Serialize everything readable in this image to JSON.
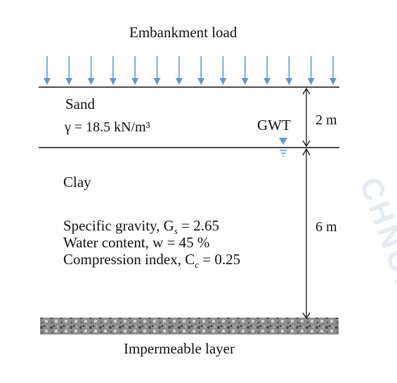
{
  "diagram": {
    "load_label": "Embankment load",
    "sand": {
      "name": "Sand",
      "unit_weight": "γ = 18.5 kN/m³"
    },
    "gwt_label": "GWT",
    "sand_thickness": "2 m",
    "clay": {
      "name": "Clay",
      "specific_gravity": "Specific gravity, G",
      "specific_gravity_sub": "s",
      "specific_gravity_value": " = 2.65",
      "water_content": "Water content, w = 45 %",
      "compression_index": "Compression index, C",
      "compression_index_sub": "c",
      "compression_index_value": " = 0.25"
    },
    "clay_thickness": "6 m",
    "base_label": "Impermeable layer"
  },
  "colors": {
    "arrow": "#5b9bd5",
    "line": "#111111",
    "watermark": "#e3ebf5"
  }
}
